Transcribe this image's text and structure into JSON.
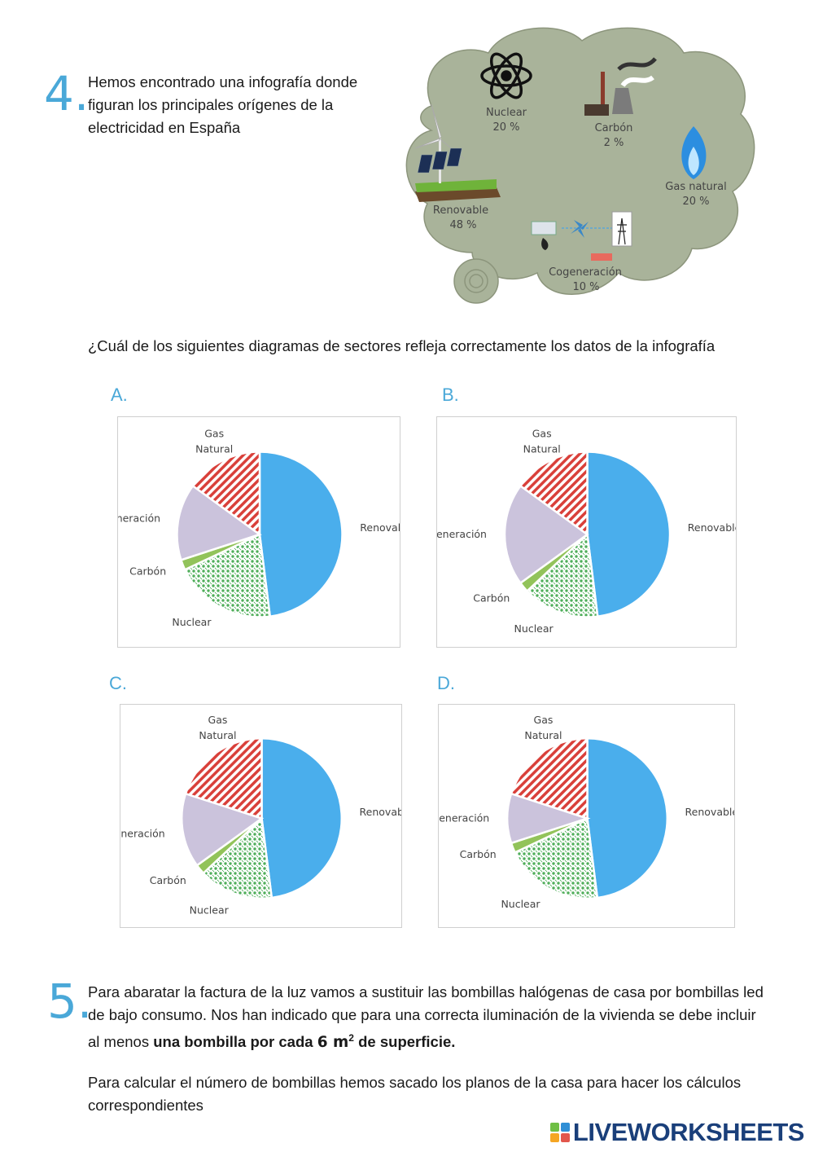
{
  "q4": {
    "number": "4.",
    "text": "Hemos encontrado una infografía donde figuran los principales orígenes de la electricidad en España",
    "question": "¿Cuál de los siguientes diagramas de sectores refleja correctamente los datos de la infografía"
  },
  "infographic": {
    "items": [
      {
        "name": "Nuclear",
        "value": "20 %",
        "icon": "atom-icon"
      },
      {
        "name": "Carbón",
        "value": "2 %",
        "icon": "power-plant-icon"
      },
      {
        "name": "Gas natural",
        "value": "20 %",
        "icon": "flame-icon"
      },
      {
        "name": "Renovable",
        "value": "48 %",
        "icon": "wind-solar-icon"
      },
      {
        "name": "Cogeneración",
        "value": "10 %",
        "icon": "cogeneration-icon"
      }
    ],
    "background_color": "#a9b39a"
  },
  "chart_data": [
    {
      "type": "pie",
      "option": "A.",
      "categories": [
        "Renovable",
        "Nuclear",
        "Carbón",
        "Cogeneración",
        "Gas Natural"
      ],
      "values": [
        48,
        20,
        2,
        15,
        15
      ]
    },
    {
      "type": "pie",
      "option": "B.",
      "categories": [
        "Renovable",
        "Nuclear",
        "Carbón",
        "Cogeneración",
        "Gas Natural"
      ],
      "values": [
        48,
        15,
        2,
        20,
        15
      ]
    },
    {
      "type": "pie",
      "option": "C.",
      "categories": [
        "Renovable",
        "Nuclear",
        "Carbón",
        "Cogeneración",
        "Gas Natural"
      ],
      "values": [
        48,
        15,
        2,
        15,
        20
      ]
    },
    {
      "type": "pie",
      "option": "D.",
      "categories": [
        "Renovable",
        "Nuclear",
        "Carbón",
        "Cogeneración",
        "Gas Natural"
      ],
      "values": [
        48,
        20,
        2,
        10,
        20
      ]
    }
  ],
  "series_colors": {
    "Renovable": "#4aaeec",
    "Nuclear": "#4fae5a",
    "Carbón": "#92c35a",
    "Cogeneración": "#cbc3dc",
    "Gas Natural": "#d9403a"
  },
  "q5": {
    "number": "5.",
    "text_part1": "Para abaratar la factura de la luz vamos a sustituir las bombillas halógenas de casa por bombillas led de bajo consumo. Nos han indicado que para una correcta iluminación de la vivienda se debe incluir al menos ",
    "text_bold": "una bombilla por cada ",
    "text_m": "6  m",
    "text_sup": "2",
    "text_bold2": " de superficie.",
    "text_part2": "Para calcular el número de bombillas hemos sacado los planos de la casa para hacer los cálculos correspondientes"
  },
  "brand": {
    "name": "LIVEWORKSHEETS",
    "logo_colors": [
      "#6fbf44",
      "#2f8fd6",
      "#f5a623",
      "#e2574c"
    ]
  }
}
